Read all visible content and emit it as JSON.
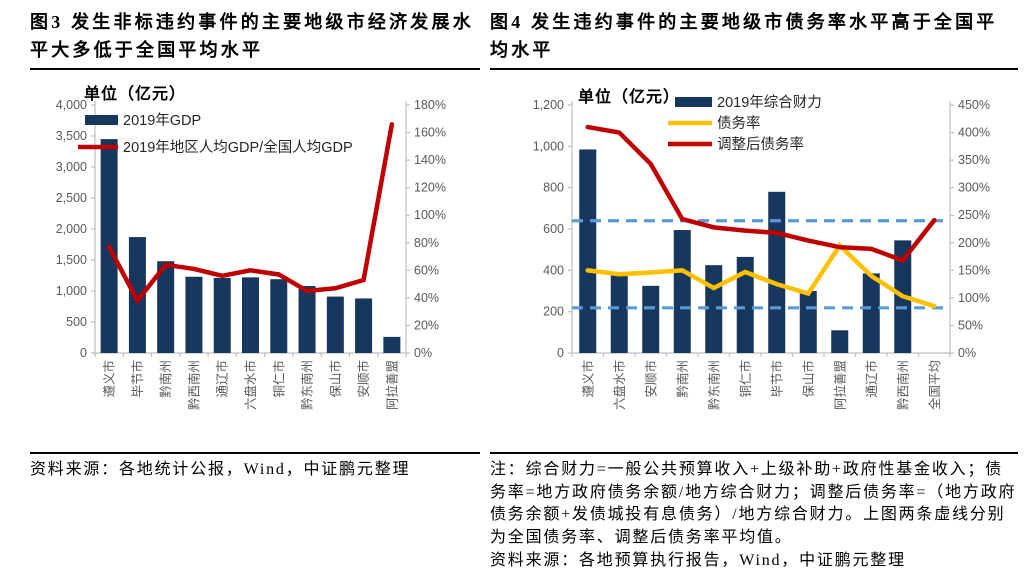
{
  "colors": {
    "bar_navy": "#17375E",
    "line_red": "#C00000",
    "line_yellow": "#FFC000",
    "dashed_blue": "#5B9BD5",
    "axis_text": "#595959",
    "axis_line": "#BFBFBF",
    "legend_text": "#262626"
  },
  "figure3": {
    "title": "图3 发生非标违约事件的主要地级市经济发展水平大多低于全国平均水平",
    "source": "资料来源：各地统计公报，Wind，中证鹏元整理"
  },
  "figure4": {
    "title": "图4 发生违约事件的主要地级市债务率水平高于全国平均水平",
    "note": "注：综合财力=一般公共预算收入+上级补助+政府性基金收入；债务率=地方政府债务余额/地方综合财力；调整后债务率=（地方政府债务余额+发债城投有息债务）/地方综合财力。上图两条虚线分别为全国债务率、调整后债务率平均值。",
    "source": "资料来源：各地预算执行报告，Wind，中证鹏元整理"
  },
  "chart_data": [
    {
      "type": "bar",
      "title": "图3 发生非标违约事件的主要地级市经济发展水平大多低于全国平均水平",
      "unit_label": "单位（亿元）",
      "categories": [
        "遵义市",
        "毕节市",
        "黔南州",
        "黔西南州",
        "通辽市",
        "六盘水市",
        "铜仁市",
        "黔东南州",
        "保山市",
        "安顺市",
        "阿拉善盟"
      ],
      "series": [
        {
          "name": "2019年GDP",
          "type": "bar",
          "axis": "left",
          "color": "#17375E",
          "values": [
            3450,
            1870,
            1480,
            1230,
            1210,
            1220,
            1190,
            1080,
            910,
            880,
            260
          ]
        },
        {
          "name": "2019年地区人均GDP/全国人均GDP",
          "type": "line",
          "axis": "right",
          "color": "#C00000",
          "values": [
            77,
            38,
            64,
            61,
            56,
            60,
            57,
            45,
            47,
            53,
            166
          ]
        }
      ],
      "left_axis": {
        "min": 0,
        "max": 4000,
        "step": 500,
        "tick_labels": [
          "0",
          "500",
          "1,000",
          "1,500",
          "2,000",
          "2,500",
          "3,000",
          "3,500",
          "4,000"
        ]
      },
      "right_axis": {
        "min": 0,
        "max": 180,
        "step": 20,
        "tick_labels": [
          "0%",
          "20%",
          "40%",
          "60%",
          "80%",
          "100%",
          "120%",
          "140%",
          "160%",
          "180%"
        ]
      },
      "reference_lines": [],
      "legend_position": "top-left",
      "grid": false
    },
    {
      "type": "bar",
      "title": "图4 发生违约事件的主要地级市债务率水平高于全国平均水平",
      "unit_label": "单位（亿元）",
      "categories": [
        "遵义市",
        "六盘水市",
        "安顺市",
        "黔南州",
        "黔东南州",
        "铜仁市",
        "毕节市",
        "保山市",
        "阿拉善盟",
        "通辽市",
        "黔西南州",
        "全国平均"
      ],
      "series": [
        {
          "name": "2019年综合财力",
          "type": "bar",
          "axis": "left",
          "color": "#17375E",
          "values": [
            985,
            390,
            325,
            595,
            425,
            465,
            780,
            300,
            110,
            385,
            545,
            null
          ]
        },
        {
          "name": "债务率",
          "type": "line",
          "axis": "right",
          "color": "#FFC000",
          "values": [
            150,
            143,
            146,
            150,
            118,
            147,
            125,
            108,
            195,
            140,
            103,
            85
          ]
        },
        {
          "name": "调整后债务率",
          "type": "line",
          "axis": "right",
          "color": "#C00000",
          "values": [
            410,
            400,
            343,
            243,
            228,
            222,
            218,
            204,
            192,
            189,
            168,
            241
          ]
        }
      ],
      "left_axis": {
        "min": 0,
        "max": 1200,
        "step": 200,
        "tick_labels": [
          "0",
          "200",
          "400",
          "600",
          "800",
          "1,000",
          "1,200"
        ]
      },
      "right_axis": {
        "min": 0,
        "max": 450,
        "step": 50,
        "tick_labels": [
          "0%",
          "50%",
          "100%",
          "150%",
          "200%",
          "250%",
          "300%",
          "350%",
          "400%",
          "450%"
        ]
      },
      "reference_lines": [
        {
          "axis": "right",
          "value": 240,
          "style": "dashed",
          "color": "#5B9BD5",
          "label": "调整后债务率平均值"
        },
        {
          "axis": "right",
          "value": 82,
          "style": "dashed",
          "color": "#5B9BD5",
          "label": "全国债务率平均值"
        }
      ],
      "legend_position": "top",
      "grid": false
    }
  ]
}
